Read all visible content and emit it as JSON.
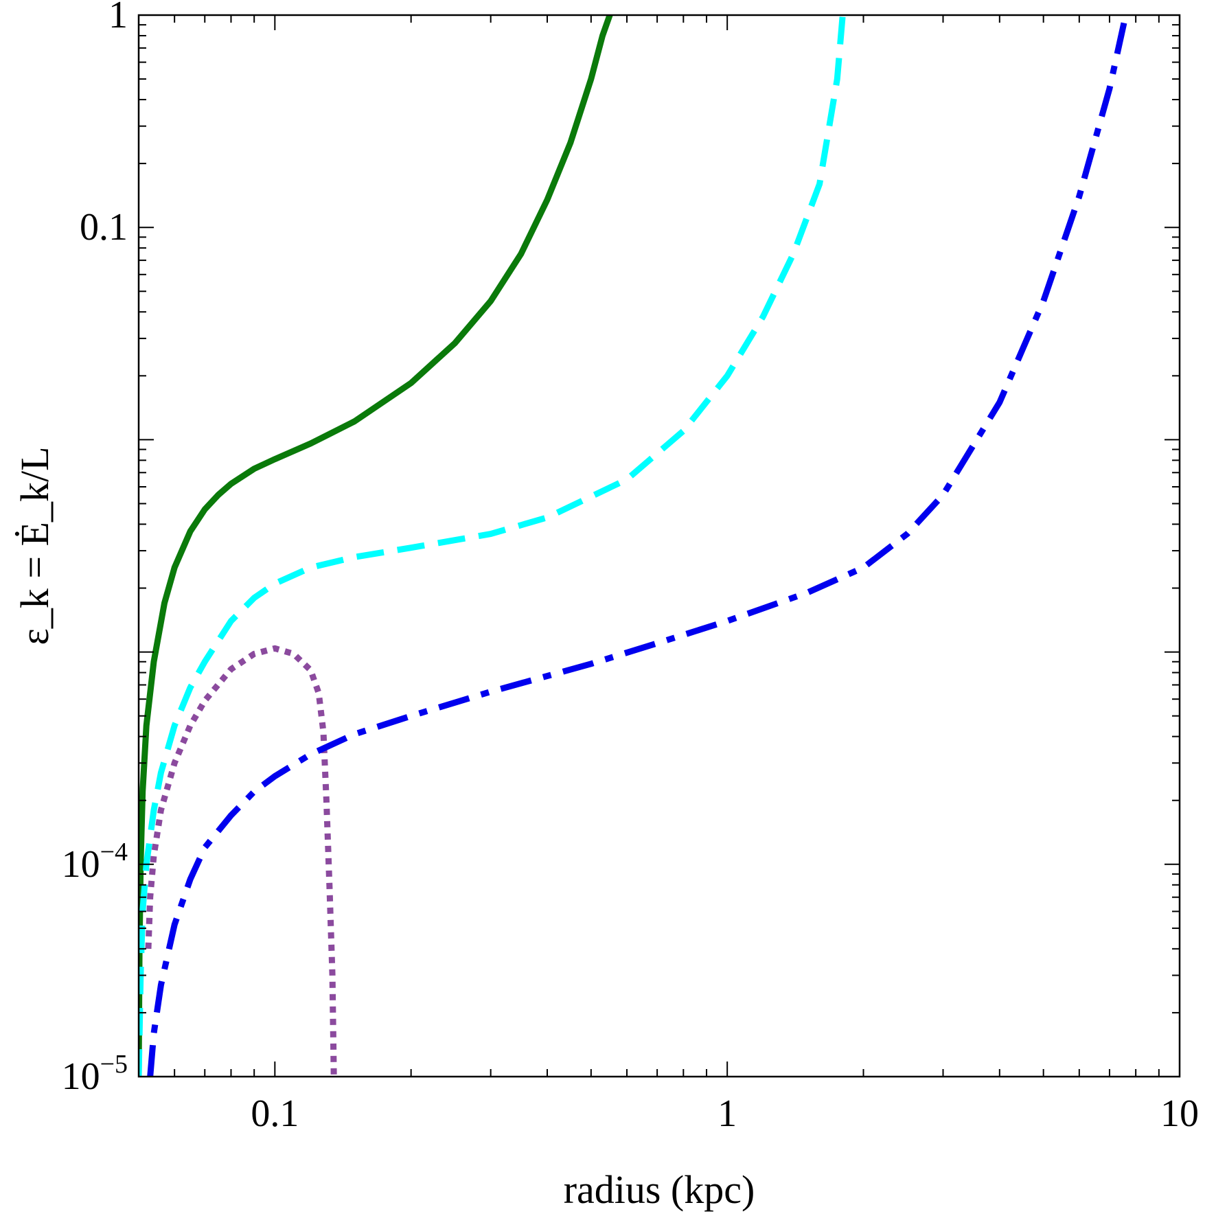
{
  "chart_data": {
    "type": "line",
    "title": "",
    "xlabel": "radius (kpc)",
    "ylabel": "ε_k = Ė_k/L",
    "xscale": "log",
    "yscale": "log",
    "xlim": [
      0.05,
      10
    ],
    "ylim": [
      1e-05,
      1
    ],
    "grid": false,
    "legend": "none",
    "x_ticks": [
      {
        "value": 0.1,
        "label": "0.1"
      },
      {
        "value": 1,
        "label": "1"
      },
      {
        "value": 10,
        "label": "10"
      }
    ],
    "y_ticks": [
      {
        "value": 1e-05,
        "base": "10",
        "exp": "−5"
      },
      {
        "value": 0.0001,
        "base": "10",
        "exp": "−4"
      },
      {
        "value": 0.1,
        "label": "0.1"
      },
      {
        "value": 1,
        "label": "1"
      }
    ],
    "series": [
      {
        "name": "solid",
        "color": "#0a7a0a",
        "dash": "solid",
        "x": [
          0.05,
          0.0502,
          0.0505,
          0.051,
          0.052,
          0.054,
          0.057,
          0.06,
          0.065,
          0.07,
          0.075,
          0.08,
          0.09,
          0.1,
          0.12,
          0.15,
          0.2,
          0.25,
          0.3,
          0.35,
          0.4,
          0.45,
          0.5,
          0.53,
          0.55
        ],
        "y": [
          1e-05,
          4e-05,
          0.0001,
          0.00022,
          0.00045,
          0.0009,
          0.0017,
          0.0025,
          0.0037,
          0.0047,
          0.0055,
          0.0062,
          0.0073,
          0.0081,
          0.0096,
          0.0122,
          0.0185,
          0.0285,
          0.045,
          0.075,
          0.135,
          0.25,
          0.5,
          0.8,
          1.0
        ]
      },
      {
        "name": "dashed",
        "color": "#00ffff",
        "dash": "dashed",
        "x": [
          0.05,
          0.0505,
          0.051,
          0.052,
          0.054,
          0.056,
          0.06,
          0.065,
          0.07,
          0.08,
          0.09,
          0.1,
          0.12,
          0.15,
          0.2,
          0.3,
          0.4,
          0.6,
          0.8,
          1.0,
          1.2,
          1.4,
          1.6,
          1.75,
          1.8
        ],
        "y": [
          1e-05,
          3e-05,
          6e-05,
          0.0001,
          0.00018,
          0.00027,
          0.00045,
          0.00068,
          0.0009,
          0.0014,
          0.0018,
          0.0021,
          0.0025,
          0.0028,
          0.0031,
          0.0036,
          0.0043,
          0.0065,
          0.011,
          0.02,
          0.038,
          0.075,
          0.16,
          0.5,
          1.0
        ]
      },
      {
        "name": "dotted",
        "color": "#8b4a9e",
        "dash": "dotted",
        "x": [
          0.0525,
          0.053,
          0.054,
          0.056,
          0.06,
          0.065,
          0.07,
          0.08,
          0.09,
          0.1,
          0.11,
          0.12,
          0.125,
          0.128,
          0.13,
          0.132,
          0.134,
          0.135
        ],
        "y": [
          4e-05,
          7e-05,
          0.00011,
          0.00018,
          0.0003,
          0.00045,
          0.00059,
          0.00083,
          0.00098,
          0.00104,
          0.00098,
          0.00082,
          0.00064,
          0.00042,
          0.0002,
          8e-05,
          3e-05,
          1e-05
        ]
      },
      {
        "name": "dash-dot",
        "color": "#0000ee",
        "dash": "dashdot",
        "x": [
          0.053,
          0.054,
          0.056,
          0.06,
          0.065,
          0.07,
          0.08,
          0.09,
          0.1,
          0.12,
          0.15,
          0.2,
          0.3,
          0.5,
          0.7,
          1.0,
          1.5,
          2.0,
          2.5,
          3.0,
          4.0,
          5.0,
          6.0,
          7.0,
          7.6
        ],
        "y": [
          1e-05,
          1.6e-05,
          2.7e-05,
          5.2e-05,
          8.5e-05,
          0.00012,
          0.00017,
          0.00022,
          0.00026,
          0.00033,
          0.00041,
          0.0005,
          0.00065,
          0.00088,
          0.0011,
          0.0014,
          0.0019,
          0.0025,
          0.0036,
          0.0055,
          0.015,
          0.045,
          0.14,
          0.45,
          1.0
        ]
      }
    ]
  }
}
